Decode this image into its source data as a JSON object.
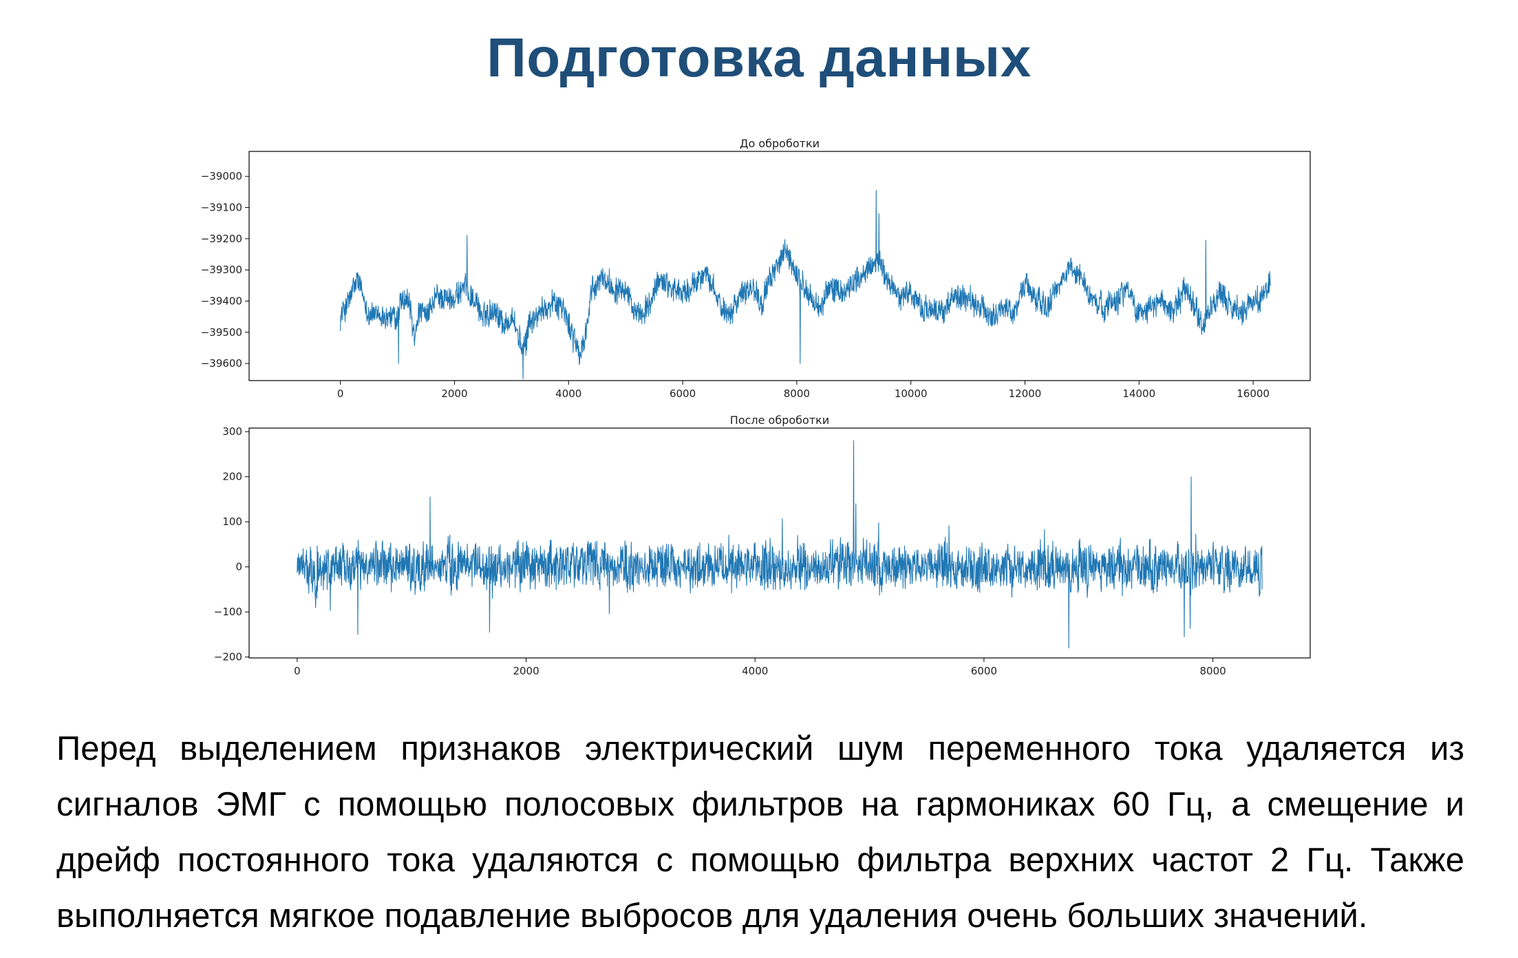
{
  "slide": {
    "title": "Подготовка данных",
    "body": "Перед выделением признаков электрический шум переменного тока удаляется из сигналов ЭМГ с помощью полосовых фильтров на гармониках 60 Гц, а смещение и дрейф постоянного тока удаляются с помощью фильтра верхних частот 2 Гц. Также выполняется мягкое подавление выбросов для удаления очень больших значений."
  },
  "colors": {
    "title": "#1f4e79",
    "series": "#1f77b4"
  },
  "chart_data": [
    {
      "type": "line",
      "title": "До оброботки",
      "xlabel": "",
      "ylabel": "",
      "x_ticks": [
        0,
        2000,
        4000,
        6000,
        8000,
        10000,
        12000,
        14000,
        16000
      ],
      "x_tick_labels": [
        "0",
        "2000",
        "4000",
        "6000",
        "8000",
        "10000",
        "12000",
        "14000",
        "16000"
      ],
      "y_ticks": [
        -39000,
        -39100,
        -39200,
        -39300,
        -39400,
        -39500,
        -39600
      ],
      "y_tick_labels": [
        "−39000",
        "−39100",
        "−39200",
        "−39300",
        "−39400",
        "−39500",
        "−39600"
      ],
      "xlim": [
        -1600,
        17000
      ],
      "ylim": [
        -39655,
        -38920
      ],
      "x_range": [
        0,
        16300
      ],
      "grid": false,
      "color": "#1f77b4",
      "series": [
        {
          "x": [
            0,
            150,
            300,
            500,
            700,
            900,
            1000,
            1050,
            1200,
            1300,
            1400,
            1500,
            1700,
            1900,
            2100,
            2200,
            2300,
            2500,
            2700,
            2900,
            3000,
            3100,
            3200,
            3250,
            3300,
            3500,
            3700,
            3900,
            4000,
            4100,
            4200,
            4300,
            4400,
            4600,
            4800,
            5000,
            5200,
            5400,
            5600,
            5800,
            6000,
            6200,
            6400,
            6600,
            6800,
            7000,
            7200,
            7400,
            7600,
            7800,
            8000,
            8200,
            8400,
            8600,
            8800,
            9000,
            9200,
            9400,
            9600,
            9800,
            10000,
            10200,
            10400,
            10600,
            10800,
            11000,
            11200,
            11400,
            11600,
            11800,
            12000,
            12200,
            12400,
            12600,
            12800,
            13000,
            13200,
            13400,
            13600,
            13800,
            14000,
            14200,
            14400,
            14600,
            14800,
            15000,
            15100,
            15200,
            15400,
            15600,
            15800,
            16000,
            16200,
            16300
          ],
          "y": [
            -39450,
            -39400,
            -39330,
            -39440,
            -39450,
            -39450,
            -39460,
            -39400,
            -39400,
            -39520,
            -39420,
            -39460,
            -39380,
            -39400,
            -39370,
            -39360,
            -39380,
            -39450,
            -39420,
            -39480,
            -39440,
            -39500,
            -39560,
            -39540,
            -39470,
            -39440,
            -39400,
            -39420,
            -39480,
            -39520,
            -39580,
            -39500,
            -39380,
            -39320,
            -39360,
            -39350,
            -39460,
            -39420,
            -39330,
            -39350,
            -39380,
            -39350,
            -39300,
            -39400,
            -39440,
            -39380,
            -39350,
            -39400,
            -39300,
            -39240,
            -39320,
            -39380,
            -39420,
            -39350,
            -39380,
            -39330,
            -39320,
            -39260,
            -39340,
            -39380,
            -39380,
            -39420,
            -39440,
            -39420,
            -39380,
            -39400,
            -39420,
            -39450,
            -39420,
            -39440,
            -39340,
            -39400,
            -39420,
            -39350,
            -39290,
            -39330,
            -39400,
            -39420,
            -39390,
            -39360,
            -39440,
            -39420,
            -39400,
            -39440,
            -39360,
            -39420,
            -39480,
            -39440,
            -39380,
            -39420,
            -39440,
            -39400,
            -39380,
            -39330
          ]
        }
      ],
      "peaks": [
        {
          "x": 9390,
          "y": -39045
        },
        {
          "x": 9440,
          "y": -39120
        },
        {
          "x": 2220,
          "y": -39190
        },
        {
          "x": 15170,
          "y": -39205
        },
        {
          "x": 3200,
          "y": -39650
        },
        {
          "x": 1020,
          "y": -39600
        },
        {
          "x": 8060,
          "y": -39600
        }
      ]
    },
    {
      "type": "line",
      "title": "После оброботки",
      "xlabel": "",
      "ylabel": "",
      "x_ticks": [
        0,
        2000,
        4000,
        6000,
        8000
      ],
      "x_tick_labels": [
        "0",
        "2000",
        "4000",
        "6000",
        "8000"
      ],
      "y_ticks": [
        300,
        200,
        100,
        0,
        -100,
        -200
      ],
      "y_tick_labels": [
        "300",
        "200",
        "100",
        "0",
        "−100",
        "−200"
      ],
      "xlim": [
        -420,
        8850
      ],
      "ylim": [
        -202,
        308
      ],
      "x_range": [
        0,
        8430
      ],
      "grid": false,
      "color": "#1f77b4",
      "series": [
        {
          "x": [
            0,
            8430
          ],
          "y": [
            0,
            0
          ]
        }
      ],
      "peaks": [
        {
          "x": 4860,
          "y": 280
        },
        {
          "x": 4880,
          "y": 140
        },
        {
          "x": 7810,
          "y": 200
        },
        {
          "x": 1160,
          "y": 155
        },
        {
          "x": 6740,
          "y": -180
        },
        {
          "x": 530,
          "y": -150
        },
        {
          "x": 1680,
          "y": -145
        },
        {
          "x": 7750,
          "y": -155
        }
      ],
      "amplitude": 45
    }
  ]
}
